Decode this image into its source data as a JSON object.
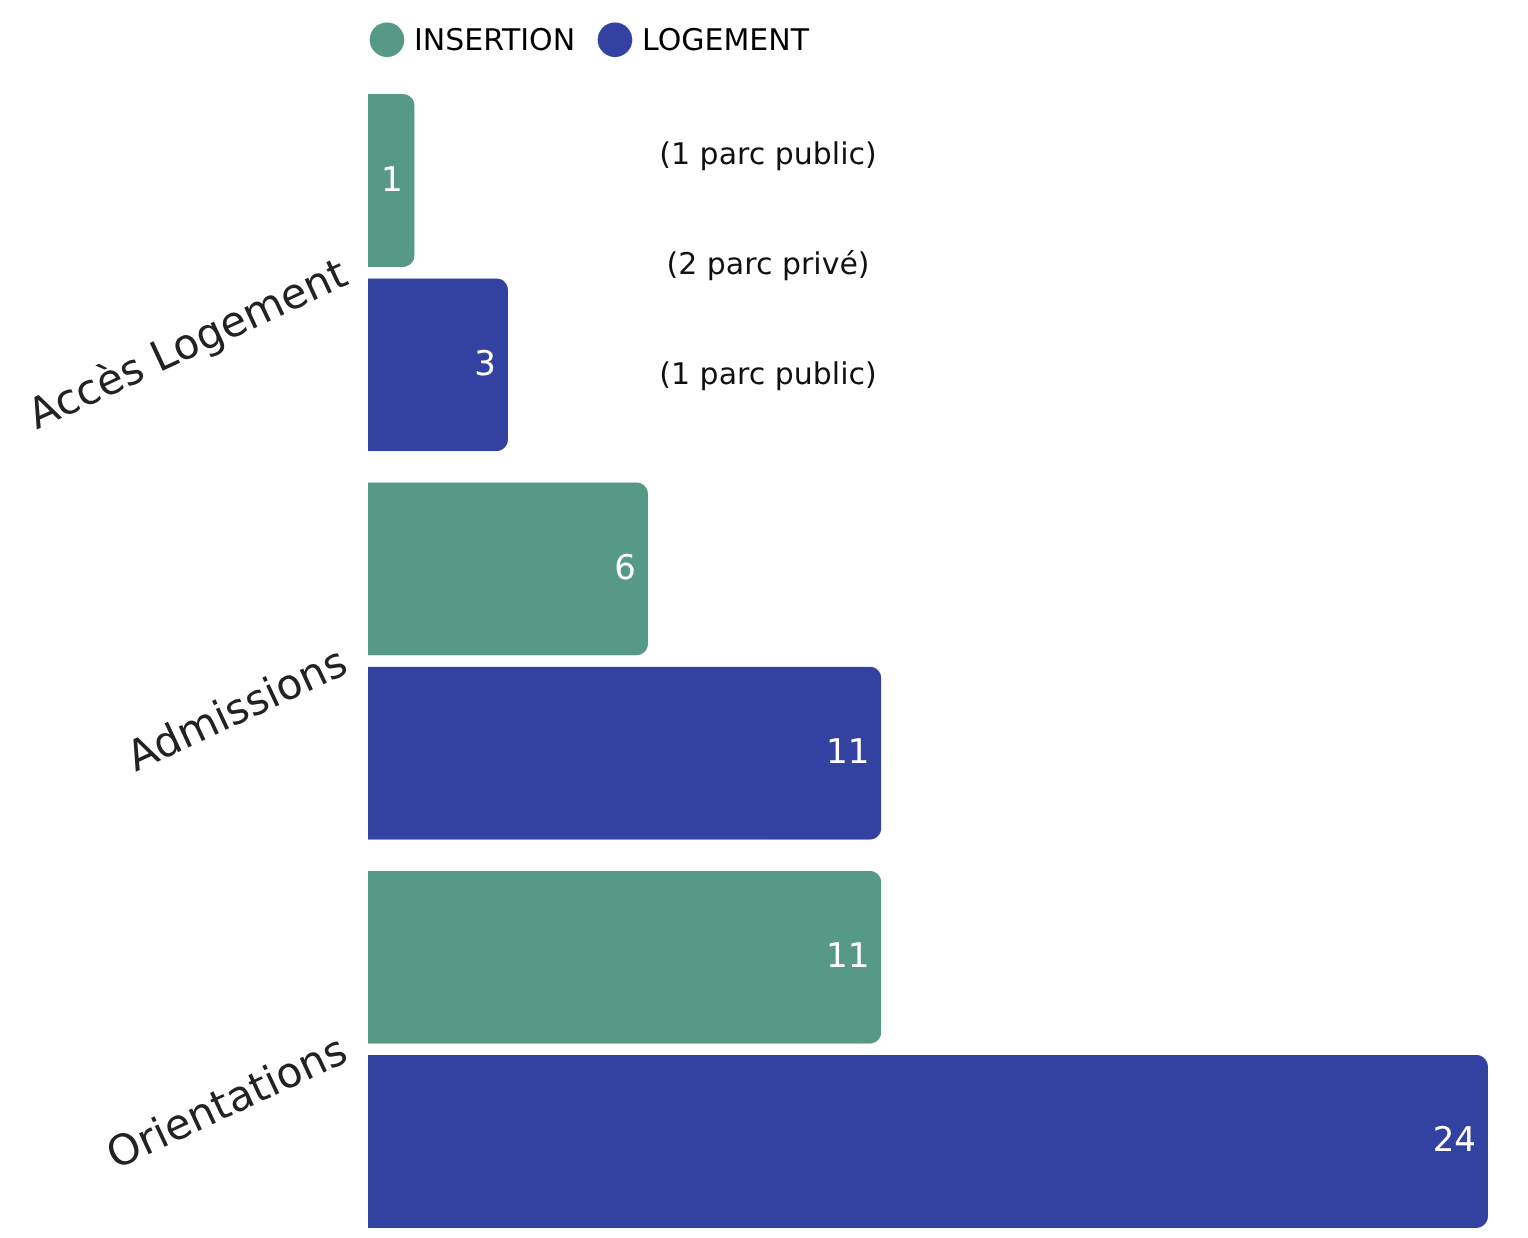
{
  "chart_data": {
    "type": "bar",
    "orientation": "horizontal",
    "data_labels": true,
    "legend": "top",
    "grid": false,
    "categories": [
      "Accès Logement",
      "Admissions",
      "Orientations"
    ],
    "series": [
      {
        "name": "INSERTION",
        "color": "#559986",
        "values": [
          1,
          6,
          11
        ]
      },
      {
        "name": "LOGEMENT",
        "color": "#3341a0",
        "values": [
          3,
          11,
          24
        ]
      }
    ],
    "annotations": [
      "(1 parc public)",
      "(2 parc privé)",
      "(1 parc public)"
    ]
  }
}
